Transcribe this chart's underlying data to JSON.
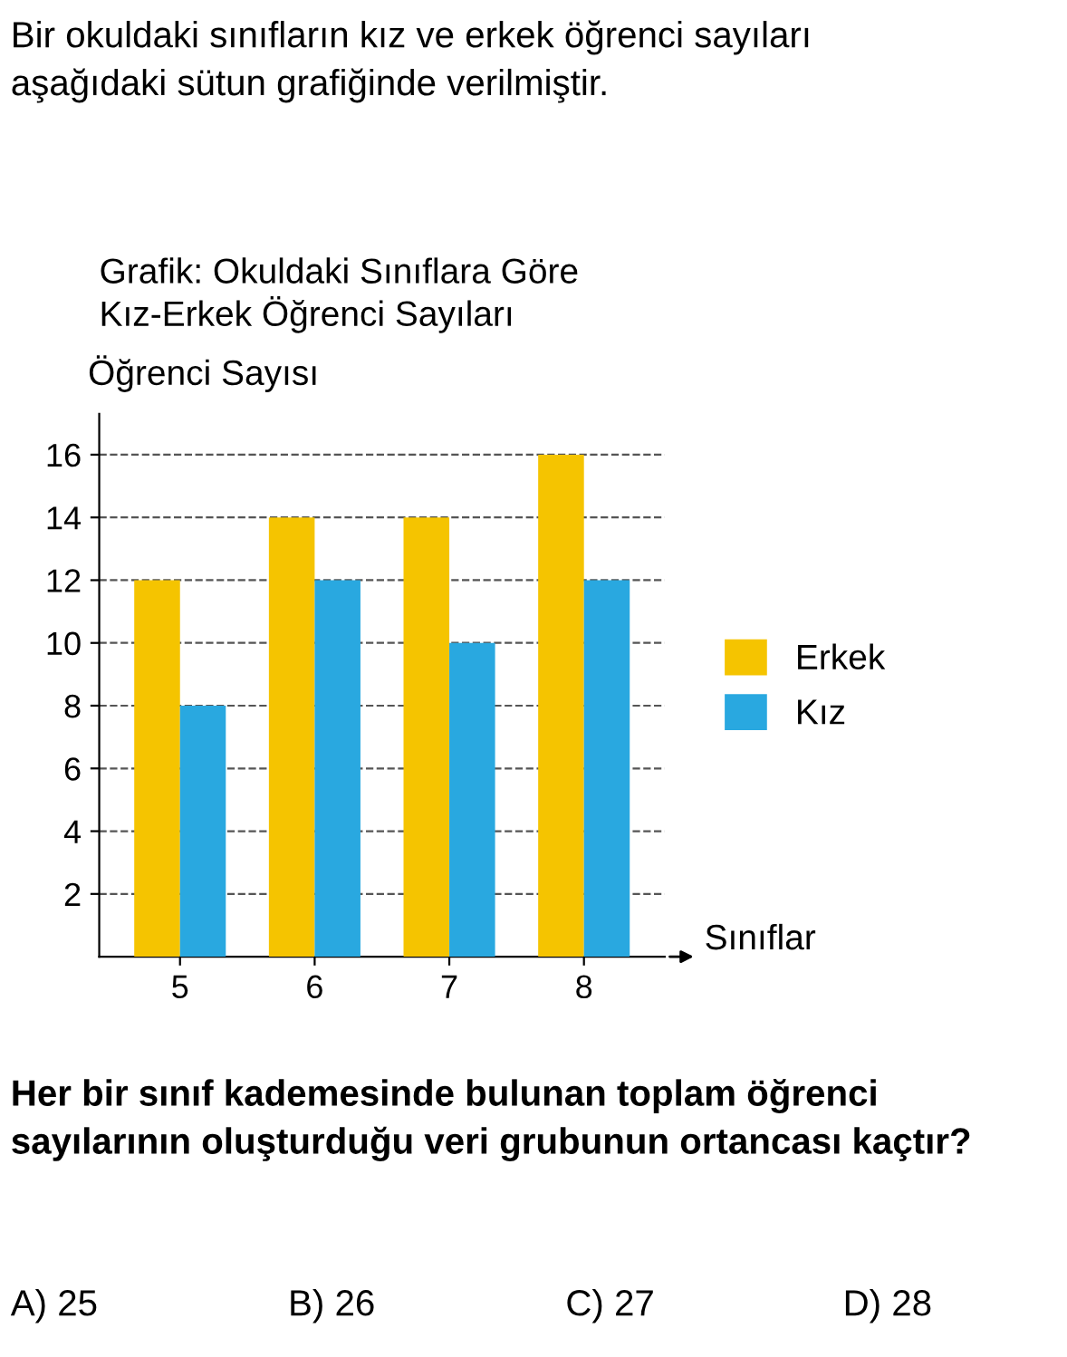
{
  "chart_data": {
    "type": "bar",
    "title": "Grafik: Okuldaki Sınıflara Göre\nKız-Erkek Öğrenci Sayıları",
    "xlabel": "Sınıflar",
    "ylabel": "Öğrenci Sayısı",
    "categories": [
      "5",
      "6",
      "7",
      "8"
    ],
    "series": [
      {
        "name": "Erkek",
        "color": "#f5c400",
        "values": [
          12,
          14,
          14,
          16
        ]
      },
      {
        "name": "Kız",
        "color": "#29a8e0",
        "values": [
          8,
          12,
          10,
          12
        ]
      }
    ],
    "ylim": [
      0,
      17.3
    ],
    "yticks": [
      2,
      4,
      6,
      8,
      10,
      12,
      14,
      16
    ],
    "grid": "y",
    "legend": "right",
    "annotations": [
      "Bir okuldaki sınıfların kız ve erkek öğrenci sayıları\naşağıdaki sütun grafiğinde verilmiştir.",
      "Her bir sınıf kademesinde bulunan toplam öğrenci sayılarının oluşturduğu veri grubunun ortancası kaçtır?",
      "A) 25",
      "B) 26",
      "C) 27",
      "D) 28"
    ]
  }
}
